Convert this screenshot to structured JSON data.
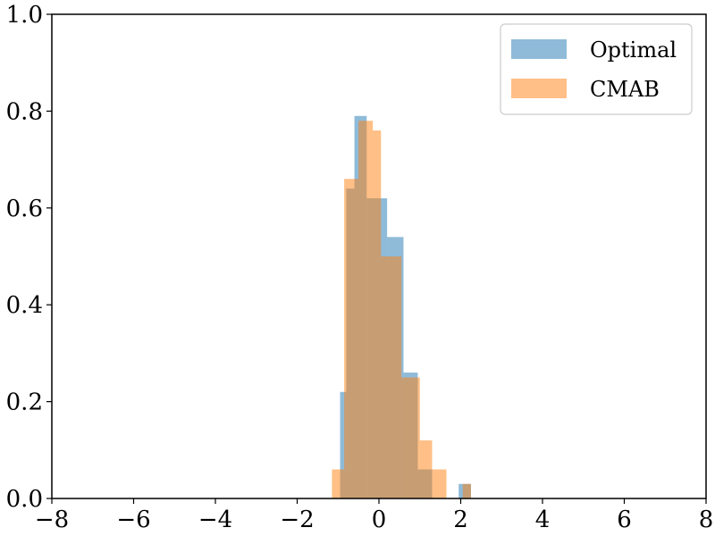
{
  "chart_data": {
    "type": "histogram",
    "xlim": [
      -8,
      8
    ],
    "ylim": [
      0,
      1.0
    ],
    "xticks": [
      -8,
      -6,
      -4,
      -2,
      0,
      2,
      4,
      6,
      8
    ],
    "yticks": [
      0.0,
      0.2,
      0.4,
      0.6,
      0.8,
      1.0
    ],
    "xtick_labels": [
      "−8",
      "−6",
      "−4",
      "−2",
      "0",
      "2",
      "4",
      "6",
      "8"
    ],
    "ytick_labels": [
      "0.0",
      "0.2",
      "0.4",
      "0.6",
      "0.8",
      "1.0"
    ],
    "grid": false,
    "legend_position": "top-right",
    "series": [
      {
        "name": "Optimal",
        "color": "#1f77b4",
        "opacity": 0.5,
        "bins": [
          [
            -0.95,
            -0.8,
            0.22
          ],
          [
            -0.8,
            -0.6,
            0.64
          ],
          [
            -0.6,
            -0.3,
            0.79
          ],
          [
            -0.3,
            0.2,
            0.62
          ],
          [
            0.2,
            0.6,
            0.54
          ],
          [
            0.6,
            0.95,
            0.26
          ],
          [
            0.95,
            1.3,
            0.06
          ],
          [
            1.95,
            2.25,
            0.03
          ]
        ]
      },
      {
        "name": "CMAB",
        "color": "#ff7f0e",
        "opacity": 0.5,
        "bins": [
          [
            -1.15,
            -0.85,
            0.06
          ],
          [
            -0.85,
            -0.5,
            0.66
          ],
          [
            -0.5,
            -0.15,
            0.78
          ],
          [
            -0.15,
            0.05,
            0.76
          ],
          [
            0.05,
            0.55,
            0.5
          ],
          [
            0.55,
            1.0,
            0.25
          ],
          [
            1.0,
            1.3,
            0.12
          ],
          [
            1.3,
            1.65,
            0.06
          ],
          [
            2.05,
            2.25,
            0.03
          ]
        ]
      }
    ]
  }
}
